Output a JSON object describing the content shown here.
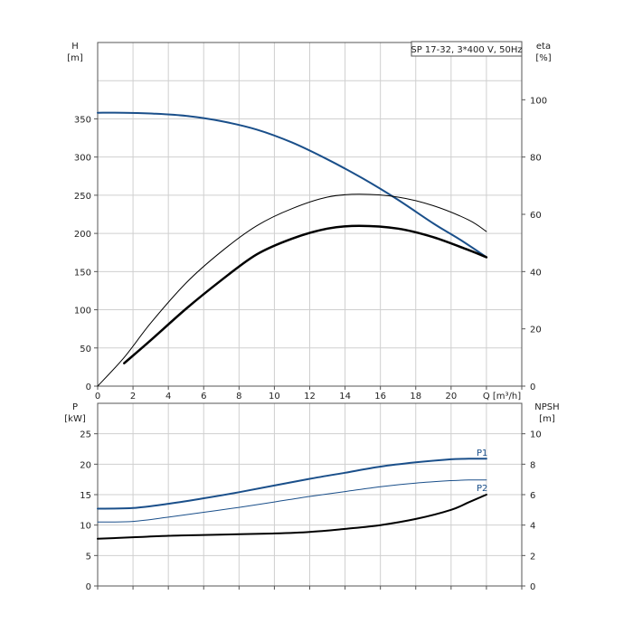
{
  "chart_data": [
    {
      "type": "line",
      "title": "SP 17-32, 3*400 V, 50Hz",
      "xlabel": "Q [m³/h]",
      "x_ticks": [
        0,
        2,
        4,
        6,
        8,
        10,
        12,
        14,
        16,
        18,
        20
      ],
      "xlim": [
        0,
        24
      ],
      "left_axis": {
        "label_top": "H",
        "label_unit": "[m]",
        "ylim": [
          0,
          450
        ],
        "ticks": [
          0,
          50,
          100,
          150,
          200,
          250,
          300,
          350
        ]
      },
      "right_axis": {
        "label_top": "eta",
        "label_unit": "[%]",
        "ylim": [
          0,
          120
        ],
        "ticks": [
          0,
          20,
          40,
          60,
          80,
          100
        ]
      },
      "grid": true,
      "series": [
        {
          "axis": "left",
          "color": "#1a4f8a",
          "width": 2,
          "x": [
            0,
            1.5,
            3,
            5,
            7,
            9,
            11,
            13,
            15,
            17,
            19,
            20.5,
            22
          ],
          "values": [
            358,
            358,
            357,
            354,
            347,
            336,
            319,
            297,
            272,
            244,
            213,
            192,
            169
          ]
        },
        {
          "axis": "right",
          "color": "#000000",
          "width": 1,
          "x": [
            0,
            1.5,
            3,
            5,
            7,
            9,
            11,
            13,
            14.8,
            17,
            19,
            21,
            22
          ],
          "values": [
            0,
            10,
            22,
            36,
            47,
            56,
            62,
            66,
            67,
            66,
            63,
            58,
            54
          ]
        },
        {
          "axis": "right",
          "color": "#000000",
          "width": 2.5,
          "x": [
            1.5,
            3,
            5,
            7,
            9,
            11,
            13,
            14.8,
            17,
            19,
            21,
            22
          ],
          "values": [
            8,
            16,
            27,
            37,
            46,
            51.5,
            55,
            56,
            55,
            52,
            47.5,
            45
          ]
        }
      ]
    },
    {
      "type": "line",
      "xlim": [
        0,
        24
      ],
      "left_axis": {
        "label_top": "P",
        "label_unit": "[kW]",
        "ylim": [
          0,
          30
        ],
        "ticks": [
          0,
          5,
          10,
          15,
          20,
          25
        ]
      },
      "right_axis": {
        "label_top": "NPSH",
        "label_unit": "[m]",
        "ylim": [
          0,
          12
        ],
        "ticks": [
          0,
          2,
          4,
          6,
          8,
          10
        ]
      },
      "grid": true,
      "series": [
        {
          "name": "P1",
          "axis": "left",
          "color": "#1a4f8a",
          "width": 2,
          "x": [
            0,
            2,
            4,
            6,
            8,
            10,
            12,
            14,
            16,
            18,
            20,
            21,
            22
          ],
          "values": [
            12.7,
            12.8,
            13.5,
            14.4,
            15.4,
            16.5,
            17.6,
            18.6,
            19.6,
            20.3,
            20.8,
            20.9,
            20.9
          ]
        },
        {
          "name": "P2",
          "axis": "left",
          "color": "#1a4f8a",
          "width": 1,
          "x": [
            0,
            2,
            4,
            6,
            8,
            10,
            12,
            14,
            16,
            18,
            20,
            21,
            22
          ],
          "values": [
            10.5,
            10.6,
            11.3,
            12.1,
            12.9,
            13.8,
            14.7,
            15.5,
            16.3,
            16.9,
            17.3,
            17.4,
            17.4
          ]
        },
        {
          "axis": "right",
          "color": "#000000",
          "width": 2,
          "x": [
            0,
            2,
            4,
            6,
            8,
            10,
            12,
            14,
            16,
            18,
            20,
            21,
            22
          ],
          "values": [
            3.1,
            3.2,
            3.3,
            3.35,
            3.4,
            3.45,
            3.55,
            3.75,
            4.0,
            4.4,
            5.0,
            5.5,
            6.0
          ]
        }
      ]
    }
  ]
}
